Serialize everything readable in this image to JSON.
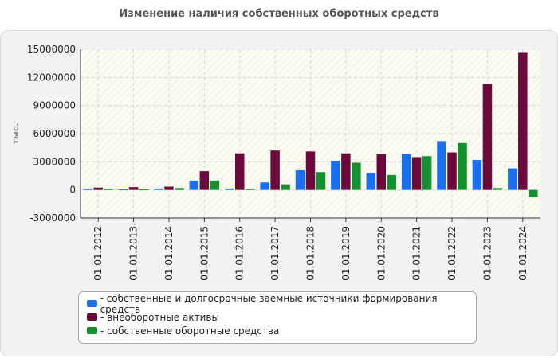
{
  "chart_data": {
    "type": "bar",
    "title": "Изменение наличия собственных оборотных средств",
    "ylabel": "тыс.",
    "xlabel": "",
    "ylim": [
      -3000000,
      15000000
    ],
    "yticks": [
      -3000000,
      0,
      3000000,
      6000000,
      9000000,
      12000000,
      15000000
    ],
    "grid": true,
    "legend_position": "bottom",
    "categories": [
      "01.01.2012",
      "01.01.2013",
      "01.01.2014",
      "01.01.2015",
      "01.01.2016",
      "01.01.2017",
      "01.01.2018",
      "01.01.2019",
      "01.01.2020",
      "01.01.2021",
      "01.01.2022",
      "01.01.2023",
      "01.01.2024"
    ],
    "series": [
      {
        "name": "- собственные и долгосрочные заемные источники формирования средств",
        "color": "#1a6ff0",
        "values": [
          100000,
          50000,
          150000,
          1000000,
          150000,
          800000,
          2100000,
          3100000,
          1800000,
          3800000,
          5200000,
          3200000,
          2300000
        ]
      },
      {
        "name": "- внеоборотные активы",
        "color": "#6b0a3a",
        "values": [
          250000,
          300000,
          350000,
          2000000,
          3900000,
          4200000,
          4100000,
          3900000,
          3800000,
          3500000,
          4000000,
          11300000,
          14700000
        ]
      },
      {
        "name": "- собственные оборотные средства",
        "color": "#15902e",
        "values": [
          100000,
          50000,
          200000,
          1000000,
          100000,
          600000,
          1900000,
          2900000,
          1600000,
          3600000,
          5000000,
          200000,
          -800000
        ]
      }
    ]
  }
}
